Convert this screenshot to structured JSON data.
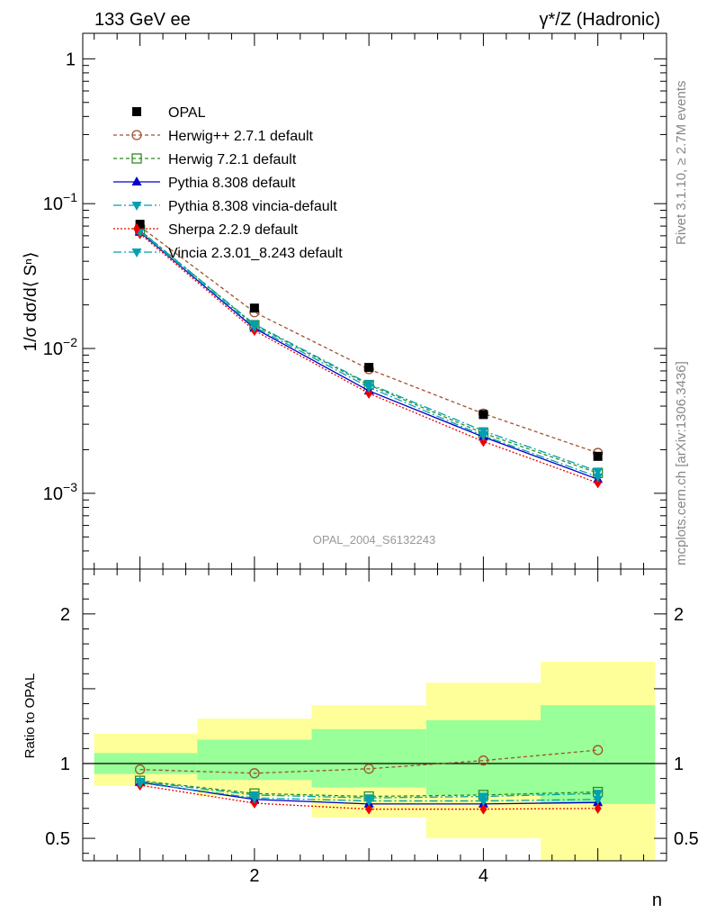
{
  "header": {
    "left": "133 GeV ee",
    "right": "γ*/Z (Hadronic)"
  },
  "side": {
    "rivet": "Rivet 3.1.10, ≥ 2.7M events",
    "site": "mcplots.cern.ch [arXiv:1306.3436]"
  },
  "analysis_label": "OPAL_2004_S6132243",
  "colors": {
    "data": "#000000",
    "herwigpp": "#a0522d",
    "herwig7": "#2e8b22",
    "pythia": "#0000cd",
    "pythia_vincia": "#00a0b0",
    "sherpa": "#ee0000",
    "vincia": "#00a0b0",
    "band_stat": "#99ff99",
    "band_total": "#ffff99"
  },
  "chart_data": [
    {
      "type": "line",
      "panel": "main",
      "ylabel": "1/σ dσ/d⟨ Sⁿ⟩",
      "yscale": "log",
      "ylim": [
        0.0003,
        1.5
      ],
      "xlim": [
        0.5,
        5.6
      ],
      "yticks": [
        {
          "v": 1,
          "base": "1",
          "exp": ""
        },
        {
          "v": 0.1,
          "base": "10",
          "exp": "−1"
        },
        {
          "v": 0.01,
          "base": "10",
          "exp": "−2"
        },
        {
          "v": 0.001,
          "base": "10",
          "exp": "−3"
        }
      ],
      "legend": "top-left",
      "series": [
        {
          "key": "opal",
          "name": "OPAL",
          "style": "data",
          "x": [
            1,
            2,
            3,
            4,
            5
          ],
          "y": [
            0.072,
            0.019,
            0.0074,
            0.0035,
            0.0018
          ]
        },
        {
          "key": "herwigpp",
          "name": "Herwig++ 2.7.1 default",
          "style": "circle-open",
          "dash": "4,3",
          "x": [
            1,
            2,
            3,
            4,
            5
          ],
          "y": [
            0.0695,
            0.0178,
            0.0072,
            0.00355,
            0.0019
          ]
        },
        {
          "key": "herwig7",
          "name": "Herwig 7.2.1 default",
          "style": "square-open",
          "dash": "4,3",
          "x": [
            1,
            2,
            3,
            4,
            5
          ],
          "y": [
            0.0655,
            0.0145,
            0.0056,
            0.0026,
            0.00138
          ]
        },
        {
          "key": "pythia",
          "name": "Pythia 8.308 default",
          "style": "triangle-up",
          "dash": "",
          "x": [
            1,
            2,
            3,
            4,
            5
          ],
          "y": [
            0.0635,
            0.0138,
            0.0051,
            0.00245,
            0.00125
          ]
        },
        {
          "key": "pythia_vincia",
          "name": "Pythia 8.308 vincia-default",
          "style": "triangle-down",
          "dash": "9,3,2,3",
          "x": [
            1,
            2,
            3,
            4,
            5
          ],
          "y": [
            0.065,
            0.0147,
            0.0057,
            0.0027,
            0.00142
          ]
        },
        {
          "key": "sherpa",
          "name": "Sherpa 2.2.9 default",
          "style": "diamond",
          "dash": "2,2",
          "x": [
            1,
            2,
            3,
            4,
            5
          ],
          "y": [
            0.062,
            0.0133,
            0.0049,
            0.00228,
            0.00118
          ]
        },
        {
          "key": "vincia",
          "name": "Vincia 2.3.01_8.243 default",
          "style": "triangle-down",
          "dash": "9,3,2,3",
          "x": [
            1,
            2,
            3,
            4,
            5
          ],
          "y": [
            0.064,
            0.0141,
            0.0054,
            0.0025,
            0.0013
          ]
        }
      ]
    },
    {
      "type": "line",
      "panel": "ratio",
      "ylabel": "Ratio to OPAL",
      "xlabel": "n",
      "ylim": [
        0.35,
        2.3
      ],
      "xlim": [
        0.5,
        5.6
      ],
      "yticks": [
        0.5,
        1,
        2
      ],
      "xticks": [
        2,
        4
      ],
      "bands": [
        {
          "x": [
            0.6,
            1.5
          ],
          "stat": [
            0.93,
            1.07
          ],
          "total": [
            0.85,
            1.2
          ]
        },
        {
          "x": [
            1.5,
            2.5
          ],
          "stat": [
            0.89,
            1.16
          ],
          "total": [
            0.78,
            1.3
          ]
        },
        {
          "x": [
            2.5,
            3.5
          ],
          "stat": [
            0.84,
            1.23
          ],
          "total": [
            0.64,
            1.39
          ]
        },
        {
          "x": [
            3.5,
            4.5
          ],
          "stat": [
            0.79,
            1.29
          ],
          "total": [
            0.5,
            1.54
          ]
        },
        {
          "x": [
            4.5,
            5.5
          ],
          "stat": [
            0.73,
            1.39
          ],
          "total": [
            0.3,
            1.68
          ]
        }
      ],
      "series": [
        {
          "key": "herwigpp",
          "x": [
            1,
            2,
            3,
            4,
            5
          ],
          "y": [
            0.96,
            0.935,
            0.965,
            1.02,
            1.09
          ]
        },
        {
          "key": "herwig7",
          "x": [
            1,
            2,
            3,
            4,
            5
          ],
          "y": [
            0.885,
            0.8,
            0.78,
            0.79,
            0.81
          ]
        },
        {
          "key": "pythia",
          "x": [
            1,
            2,
            3,
            4,
            5
          ],
          "y": [
            0.875,
            0.76,
            0.73,
            0.73,
            0.74
          ]
        },
        {
          "key": "pythia_vincia",
          "x": [
            1,
            2,
            3,
            4,
            5
          ],
          "y": [
            0.88,
            0.79,
            0.77,
            0.78,
            0.8
          ]
        },
        {
          "key": "sherpa",
          "x": [
            1,
            2,
            3,
            4,
            5
          ],
          "y": [
            0.855,
            0.735,
            0.695,
            0.695,
            0.7
          ]
        },
        {
          "key": "vincia",
          "x": [
            1,
            2,
            3,
            4,
            5
          ],
          "y": [
            0.87,
            0.77,
            0.75,
            0.75,
            0.76
          ]
        }
      ]
    }
  ]
}
